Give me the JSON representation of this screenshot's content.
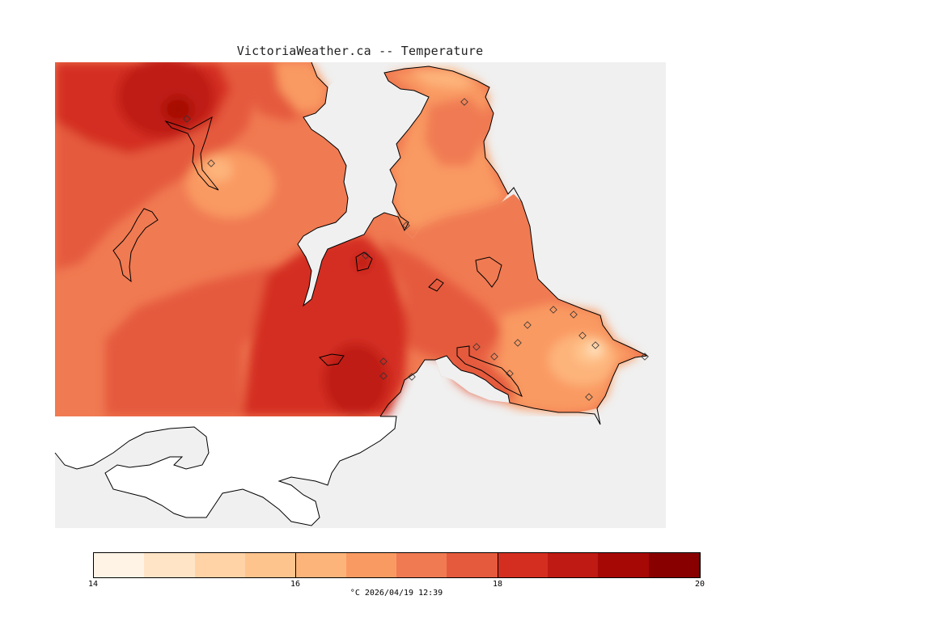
{
  "title": "VictoriaWeather.ca -- Temperature",
  "colors": {
    "background": "#f0f0f0",
    "land_base": "#f07a52",
    "no_data_land": "#ffffff",
    "coast": "#000000"
  },
  "colorbar": {
    "min": 14,
    "max": 20,
    "tick_labels": [
      {
        "value": 14,
        "text": "14"
      },
      {
        "value": 16,
        "text": "16"
      },
      {
        "value": 18,
        "text": "18"
      },
      {
        "value": 20,
        "text": "20"
      }
    ],
    "colors": [
      "#fff3e6",
      "#ffe4c6",
      "#ffd3a6",
      "#fec48d",
      "#fdb47a",
      "#f99a62",
      "#f07a52",
      "#e55a3d",
      "#d42e20",
      "#bf1a13",
      "#a60806",
      "#880000"
    ]
  },
  "caption": "°C  2026/04/19 12:39"
}
